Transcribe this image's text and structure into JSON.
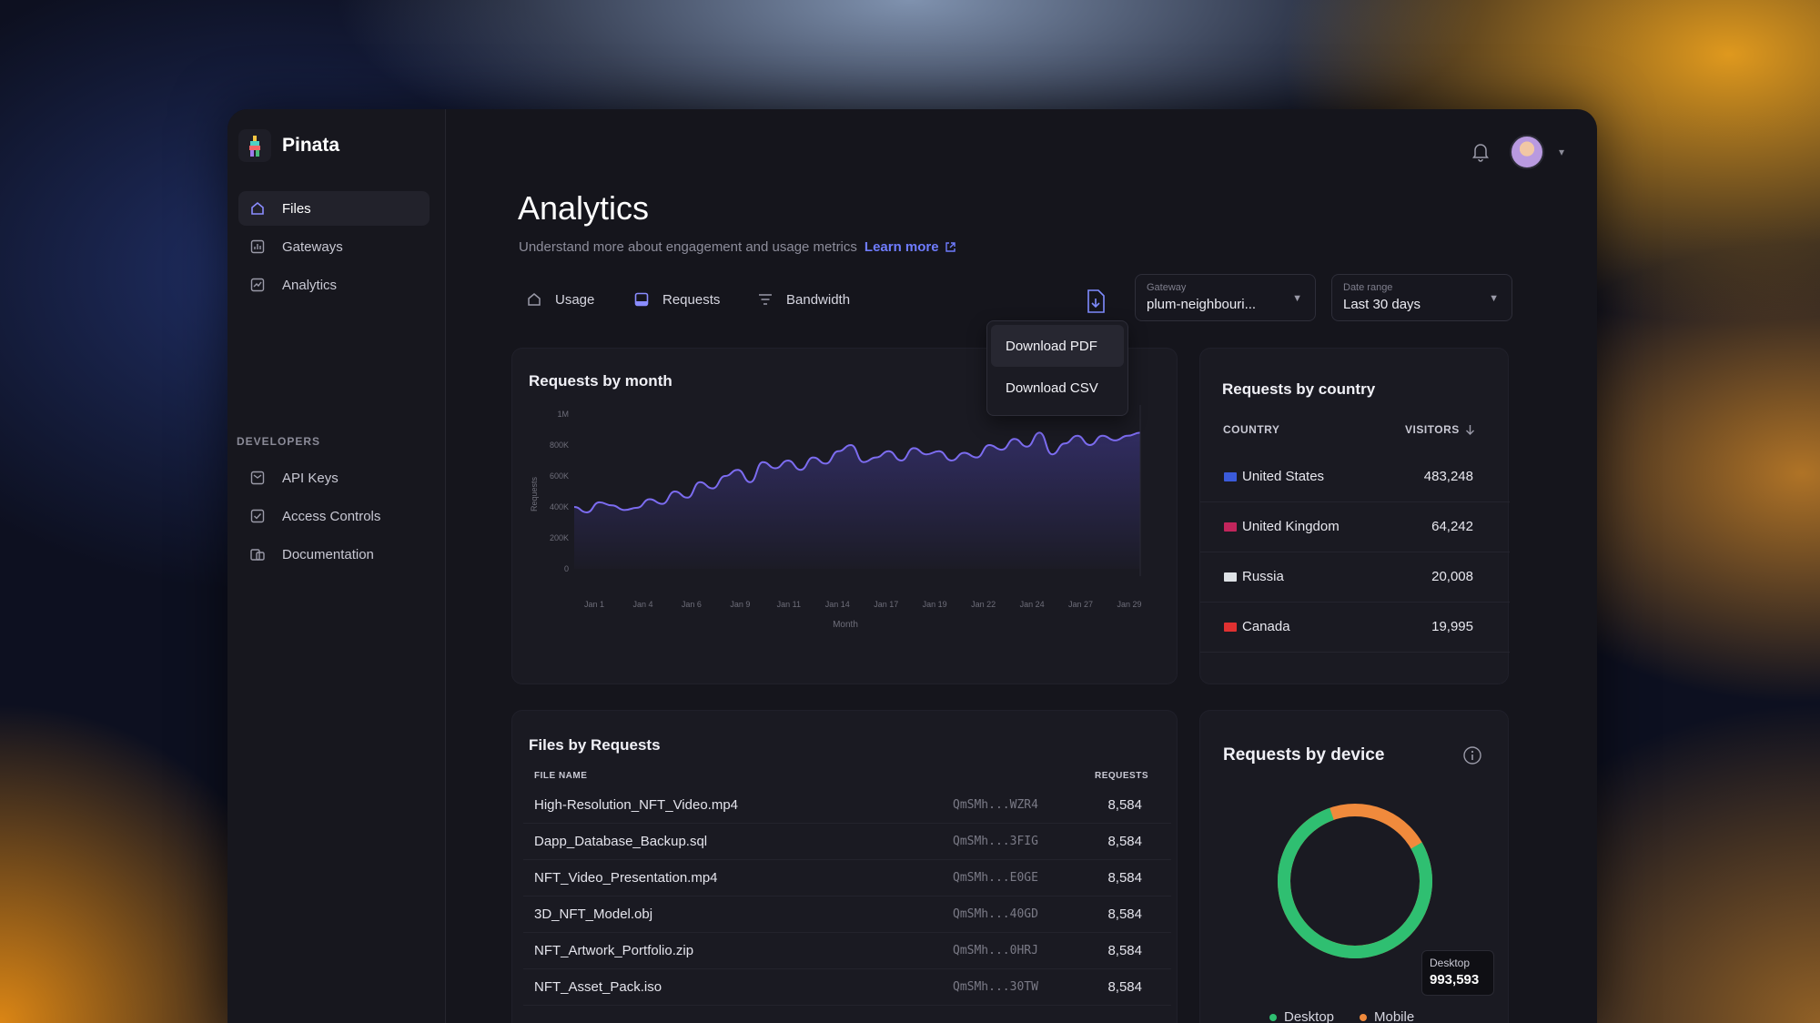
{
  "app": {
    "name": "Pinata"
  },
  "sidebar": {
    "items": [
      {
        "label": "Files",
        "icon": "home-icon",
        "active": true
      },
      {
        "label": "Gateways",
        "icon": "gateway-icon"
      },
      {
        "label": "Analytics",
        "icon": "analytics-icon"
      }
    ],
    "section_label": "DEVELOPERS",
    "dev_items": [
      {
        "label": "API Keys",
        "icon": "key-icon"
      },
      {
        "label": "Access Controls",
        "icon": "shield-icon"
      },
      {
        "label": "Documentation",
        "icon": "book-icon"
      }
    ]
  },
  "header": {
    "title": "Analytics",
    "subtitle": "Understand more about engagement and usage metrics",
    "learn_more": "Learn more"
  },
  "tabs": [
    {
      "label": "Usage",
      "icon": "usage-icon"
    },
    {
      "label": "Requests",
      "icon": "requests-icon"
    },
    {
      "label": "Bandwidth",
      "icon": "filter-icon"
    }
  ],
  "filters": {
    "gateway": {
      "label": "Gateway",
      "value": "plum-neighbouri..."
    },
    "date_range": {
      "label": "Date range",
      "value": "Last 30 days"
    }
  },
  "export_menu": {
    "items": [
      "Download PDF",
      "Download CSV"
    ]
  },
  "requests_by_month": {
    "title": "Requests by month"
  },
  "chart_data": {
    "type": "area",
    "title": "Requests by month",
    "xlabel": "Month",
    "ylabel": "Requests",
    "ylim": [
      0,
      1000000
    ],
    "y_ticks": [
      "0",
      "200K",
      "400K",
      "600K",
      "800K",
      "1M"
    ],
    "x_ticks": [
      "Jan 1",
      "Jan 4",
      "Jan 6",
      "Jan 9",
      "Jan 11",
      "Jan 14",
      "Jan 17",
      "Jan 19",
      "Jan 22",
      "Jan 24",
      "Jan 27",
      "Jan 29"
    ],
    "grid": false,
    "series": [
      {
        "values": [
          400000,
          365000,
          430000,
          410000,
          380000,
          395000,
          450000,
          420000,
          500000,
          460000,
          560000,
          520000,
          600000,
          640000,
          560000,
          690000,
          650000,
          700000,
          640000,
          720000,
          680000,
          760000,
          800000,
          690000,
          720000,
          760000,
          700000,
          780000,
          740000,
          760000,
          700000,
          750000,
          720000,
          800000,
          770000,
          840000,
          790000,
          880000,
          740000,
          810000,
          860000,
          800000,
          860000,
          830000,
          860000,
          880000
        ]
      }
    ]
  },
  "requests_by_country": {
    "title": "Requests by country",
    "col_country": "COUNTRY",
    "col_visitors": "VISITORS",
    "rows": [
      {
        "country": "United States",
        "visitors": "483,248",
        "flag_color": "#3b5bdb"
      },
      {
        "country": "United Kingdom",
        "visitors": "64,242",
        "flag_color": "#c2255c"
      },
      {
        "country": "Russia",
        "visitors": "20,008",
        "flag_color": "#dee2e6"
      },
      {
        "country": "Canada",
        "visitors": "19,995",
        "flag_color": "#e03131"
      }
    ]
  },
  "files_by_requests": {
    "title": "Files by Requests",
    "col_name": "FILE NAME",
    "col_requests": "REQUESTS",
    "rows": [
      {
        "name": "High-Resolution_NFT_Video.mp4",
        "cid": "QmSMh...WZR4",
        "requests": "8,584"
      },
      {
        "name": "Dapp_Database_Backup.sql",
        "cid": "QmSMh...3FIG",
        "requests": "8,584"
      },
      {
        "name": "NFT_Video_Presentation.mp4",
        "cid": "QmSMh...E0GE",
        "requests": "8,584"
      },
      {
        "name": "3D_NFT_Model.obj",
        "cid": "QmSMh...40GD",
        "requests": "8,584"
      },
      {
        "name": "NFT_Artwork_Portfolio.zip",
        "cid": "QmSMh...0HRJ",
        "requests": "8,584"
      },
      {
        "name": "NFT_Asset_Pack.iso",
        "cid": "QmSMh...30TW",
        "requests": "8,584"
      }
    ]
  },
  "requests_by_device": {
    "title": "Requests by device",
    "tooltip_label": "Desktop",
    "tooltip_value": "993,593",
    "legend": [
      {
        "label": "Desktop",
        "color": "#2fbf71"
      },
      {
        "label": "Mobile",
        "color": "#f08a3c"
      }
    ],
    "desktop_share": 0.78
  },
  "colors": {
    "accent": "#6f7cff",
    "line": "#7c6cf0",
    "desktop": "#2fbf71",
    "mobile": "#f08a3c"
  }
}
